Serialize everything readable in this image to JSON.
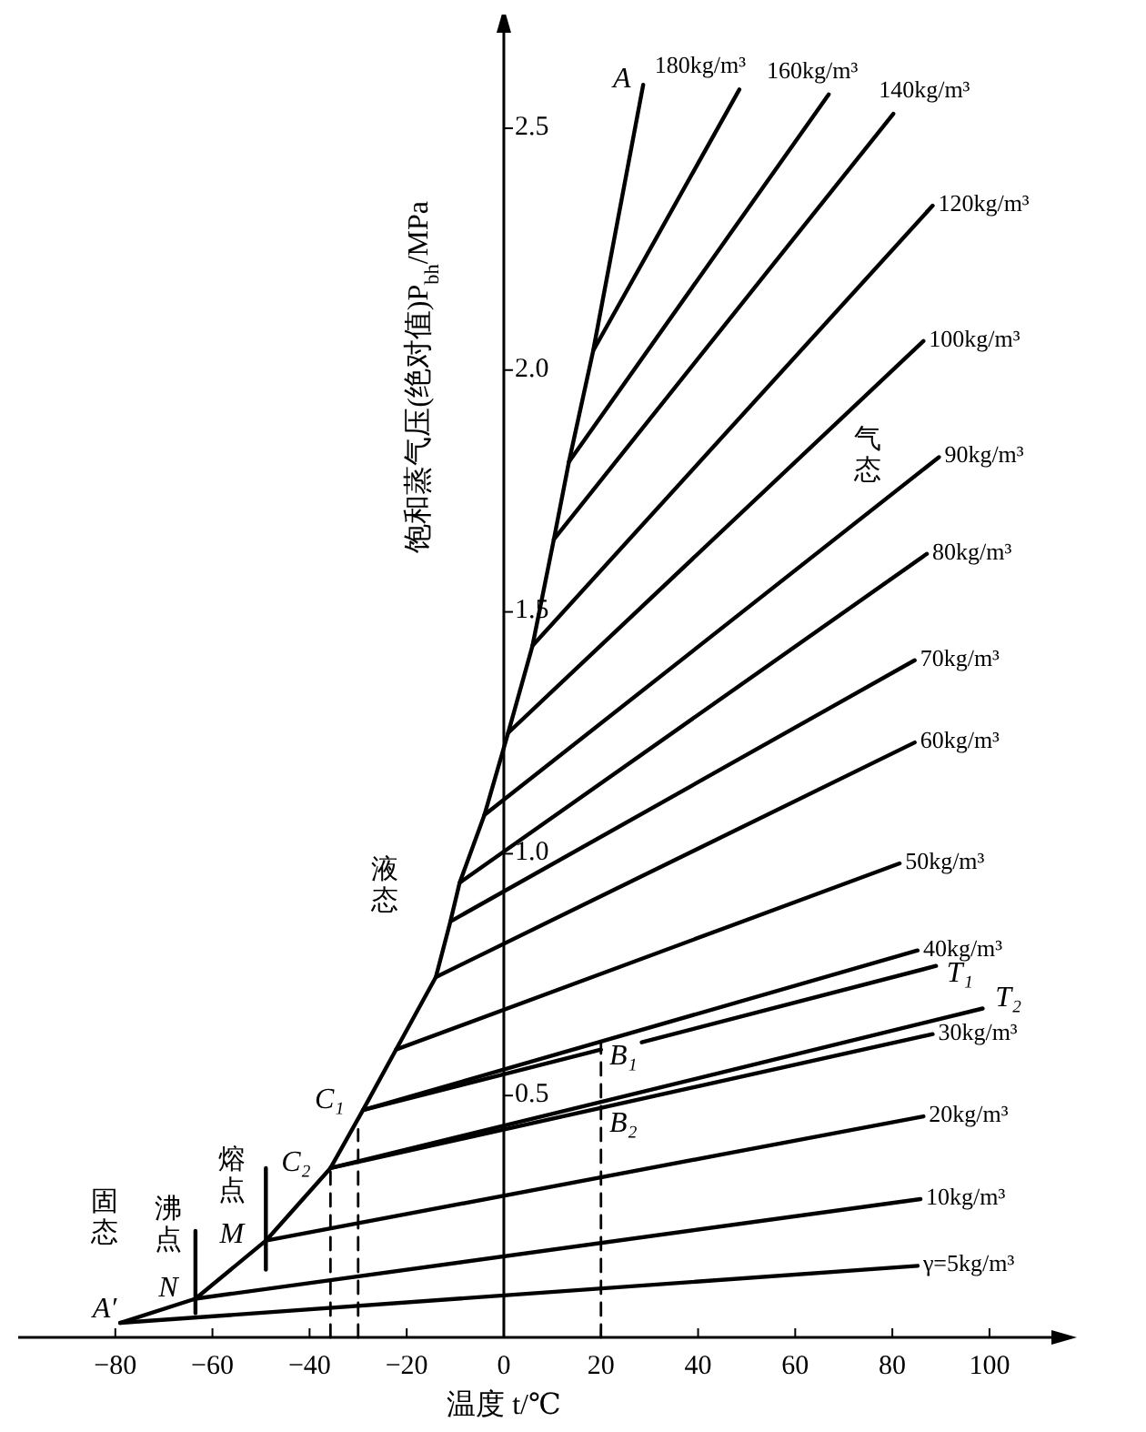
{
  "chart_data": {
    "type": "line",
    "xlabel": "温度 t/℃",
    "ylabel": "饱和蒸气压(绝对值)P$_{bh}$/MPa",
    "xlim": [
      -100,
      115
    ],
    "ylim": [
      0,
      2.72
    ],
    "xticks": [
      -80,
      -60,
      -40,
      -20,
      0,
      20,
      40,
      60,
      80,
      100
    ],
    "yticks": [
      0.5,
      {
        "value": 1,
        "label": "1.0"
      },
      1.5,
      {
        "value": 2,
        "label": "2.0"
      },
      2.5
    ],
    "series": [
      {
        "color": "#000000",
        "x": [
          -79,
          -63.5,
          -49,
          -35.7,
          -29,
          -22.2,
          -14,
          -11,
          -9.1,
          -4,
          0.9,
          5.9,
          10.3,
          13.4,
          18.4,
          28.7
        ],
        "values": [
          0.03,
          0.08,
          0.2,
          0.35,
          0.47,
          0.595,
          0.745,
          0.86,
          0.94,
          1.08,
          1.25,
          1.43,
          1.65,
          1.81,
          2.04,
          2.59
        ]
      },
      {
        "name": "γ=5kg/m³",
        "color": "#000000",
        "x": [
          -79,
          85.2
        ],
        "values": [
          0.03,
          0.148
        ]
      },
      {
        "name": "10kg/m³",
        "color": "#000000",
        "x": [
          -63.5,
          85.8
        ],
        "values": [
          0.08,
          0.286
        ]
      },
      {
        "name": "20kg/m³",
        "color": "#000000",
        "x": [
          -49,
          86.4
        ],
        "values": [
          0.2,
          0.457
        ]
      },
      {
        "name": "30kg/m³",
        "color": "#000000",
        "x": [
          -35.7,
          88.3
        ],
        "values": [
          0.35,
          0.627
        ]
      },
      {
        "color": "#000000",
        "x": [
          -35.7,
          98.6
        ],
        "values": [
          0.35,
          0.68
        ]
      },
      {
        "name": "40kg/m³",
        "color": "#000000",
        "x": [
          -29,
          85.2
        ],
        "values": [
          0.47,
          0.8
        ]
      },
      {
        "color": "#000000",
        "x": [
          -29,
          20,
          24,
          28.4,
          89
        ],
        "values": [
          0.47,
          0.595,
          null,
          0.61,
          0.768
        ]
      },
      {
        "name": "50kg/m³",
        "color": "#000000",
        "x": [
          -22.2,
          81.5
        ],
        "values": [
          0.595,
          0.98
        ]
      },
      {
        "name": "60kg/m³",
        "color": "#000000",
        "x": [
          -14,
          84.6
        ],
        "values": [
          0.745,
          1.23
        ]
      },
      {
        "name": "70kg/m³",
        "color": "#000000",
        "x": [
          -11,
          84.6
        ],
        "values": [
          0.86,
          1.4
        ]
      },
      {
        "name": "80kg/m³",
        "color": "#000000",
        "x": [
          -9.1,
          87.1
        ],
        "values": [
          0.94,
          1.62
        ]
      },
      {
        "name": "90kg/m³",
        "color": "#000000",
        "x": [
          -4,
          89.6
        ],
        "values": [
          1.08,
          1.82
        ]
      },
      {
        "name": "100kg/m³",
        "color": "#000000",
        "x": [
          0.9,
          86.4
        ],
        "values": [
          1.25,
          2.06
        ]
      },
      {
        "name": "120kg/m³",
        "color": "#000000",
        "x": [
          5.9,
          88.3
        ],
        "values": [
          1.43,
          2.34
        ]
      },
      {
        "name": "140kg/m³",
        "color": "#000000",
        "x": [
          10.3,
          80.2
        ],
        "values": [
          1.65,
          2.53
        ]
      },
      {
        "name": "160kg/m³",
        "color": "#000000",
        "x": [
          13.4,
          66.9
        ],
        "values": [
          1.81,
          2.57
        ]
      },
      {
        "name": "180kg/m³",
        "color": "#000000",
        "x": [
          18.4,
          48.5
        ],
        "values": [
          2.04,
          2.58
        ]
      },
      {
        "color": "#000000",
        "line_style": "dashed",
        "x": [
          -35.7,
          -35.7
        ],
        "values": [
          0,
          0.35
        ]
      },
      {
        "color": "#000000",
        "line_style": "dashed",
        "x": [
          -30,
          -30
        ],
        "values": [
          0,
          0.43
        ]
      },
      {
        "color": "#000000",
        "line_style": "dashed",
        "x": [
          20,
          20
        ],
        "values": [
          0,
          0.61
        ]
      },
      {
        "color": "#000000",
        "x": [
          -63.5,
          -63.5
        ],
        "values": [
          0.05,
          0.22
        ]
      },
      {
        "color": "#000000",
        "x": [
          -49,
          -49
        ],
        "values": [
          0.14,
          0.35
        ]
      }
    ],
    "annotations": [
      "固态",
      "沸点",
      "N",
      "熔点",
      "M",
      "C₂",
      "C₁",
      "A′",
      "液态",
      "气态",
      "A",
      "B₁",
      "B₂",
      "T₁",
      "T₂"
    ]
  }
}
